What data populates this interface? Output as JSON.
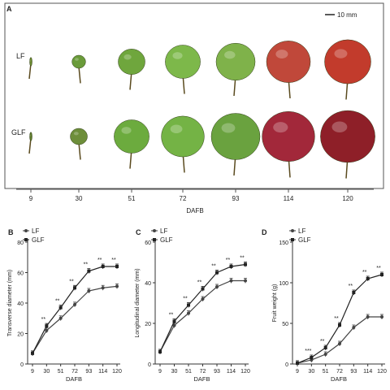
{
  "panel_a": {
    "label": "A",
    "scale_label": "10 mm",
    "row_labels": [
      "LF",
      "GLF"
    ],
    "xlabel": "DAFB",
    "ticks": [
      "9",
      "30",
      "51",
      "72",
      "93",
      "114",
      "120"
    ],
    "fruits": {
      "LF": [
        {
          "day": "9",
          "color": "#6b8a2e",
          "size": 0.08
        },
        {
          "day": "30",
          "color": "#6a9b3a",
          "size": 0.28
        },
        {
          "day": "51",
          "color": "#6fa63d",
          "size": 0.55
        },
        {
          "day": "72",
          "color": "#7db84a",
          "size": 0.72
        },
        {
          "day": "93",
          "color": "#7fb24a",
          "size": 0.8
        },
        {
          "day": "114",
          "color": "#c0483a",
          "size": 0.9
        },
        {
          "day": "120",
          "color": "#c23b2c",
          "size": 0.95
        }
      ],
      "GLF": [
        {
          "day": "9",
          "color": "#5d7a2a",
          "size": 0.1
        },
        {
          "day": "30",
          "color": "#6d8e3a",
          "size": 0.35
        },
        {
          "day": "51",
          "color": "#6cab3e",
          "size": 0.72
        },
        {
          "day": "72",
          "color": "#74b345",
          "size": 0.88
        },
        {
          "day": "93",
          "color": "#6aa23f",
          "size": 1.0
        },
        {
          "day": "114",
          "color": "#a2283a",
          "size": 1.08
        },
        {
          "day": "120",
          "color": "#8e1f28",
          "size": 1.12
        }
      ]
    }
  },
  "chart_data": [
    {
      "panel": "B",
      "type": "line",
      "x": [
        9,
        30,
        51,
        72,
        93,
        114,
        120
      ],
      "tick_labels": [
        "9",
        "30",
        "51",
        "72",
        "93",
        "114",
        "120"
      ],
      "xlabel": "DAFB",
      "ylabel": "Transverse diameter (mm)",
      "ylim": [
        0,
        80
      ],
      "yticks": [
        "0",
        "20",
        "40",
        "60",
        "80"
      ],
      "legend": [
        "LF",
        "GLF"
      ],
      "series": [
        {
          "name": "LF",
          "values": [
            7,
            22,
            30,
            39,
            48,
            50,
            51
          ]
        },
        {
          "name": "GLF",
          "values": [
            7,
            25,
            37,
            50,
            61,
            64,
            64
          ]
        }
      ],
      "significance": [
        "",
        "**",
        "**",
        "**",
        "**",
        "**",
        "**"
      ]
    },
    {
      "panel": "C",
      "type": "line",
      "x": [
        9,
        30,
        51,
        72,
        93,
        114,
        120
      ],
      "tick_labels": [
        "9",
        "30",
        "51",
        "72",
        "93",
        "114",
        "120"
      ],
      "xlabel": "DAFB",
      "ylabel": "Longitudinal diameter (mm)",
      "ylim": [
        0,
        60
      ],
      "yticks": [
        "0",
        "20",
        "40",
        "60"
      ],
      "legend": [
        "LF",
        "GLF"
      ],
      "series": [
        {
          "name": "LF",
          "values": [
            6,
            19,
            25,
            32,
            38,
            41,
            41
          ]
        },
        {
          "name": "GLF",
          "values": [
            6,
            21,
            29,
            37,
            45,
            48,
            49
          ]
        }
      ],
      "significance": [
        "",
        "**",
        "**",
        "**",
        "**",
        "**",
        "**"
      ]
    },
    {
      "panel": "D",
      "type": "line",
      "x": [
        9,
        30,
        51,
        72,
        93,
        114,
        120
      ],
      "tick_labels": [
        "9",
        "30",
        "51",
        "72",
        "93",
        "114",
        "120"
      ],
      "xlabel": "DAFB",
      "ylabel": "Fruit weight (g)",
      "ylim": [
        0,
        150
      ],
      "yticks": [
        "0",
        "50",
        "100",
        "150"
      ],
      "legend": [
        "LF",
        "GLF"
      ],
      "series": [
        {
          "name": "LF",
          "values": [
            1,
            5,
            12,
            25,
            45,
            58,
            58
          ]
        },
        {
          "name": "GLF",
          "values": [
            1,
            8,
            20,
            48,
            88,
            105,
            110
          ]
        }
      ],
      "significance": [
        "",
        "***",
        "**",
        "**",
        "**",
        "**",
        "**"
      ]
    }
  ]
}
